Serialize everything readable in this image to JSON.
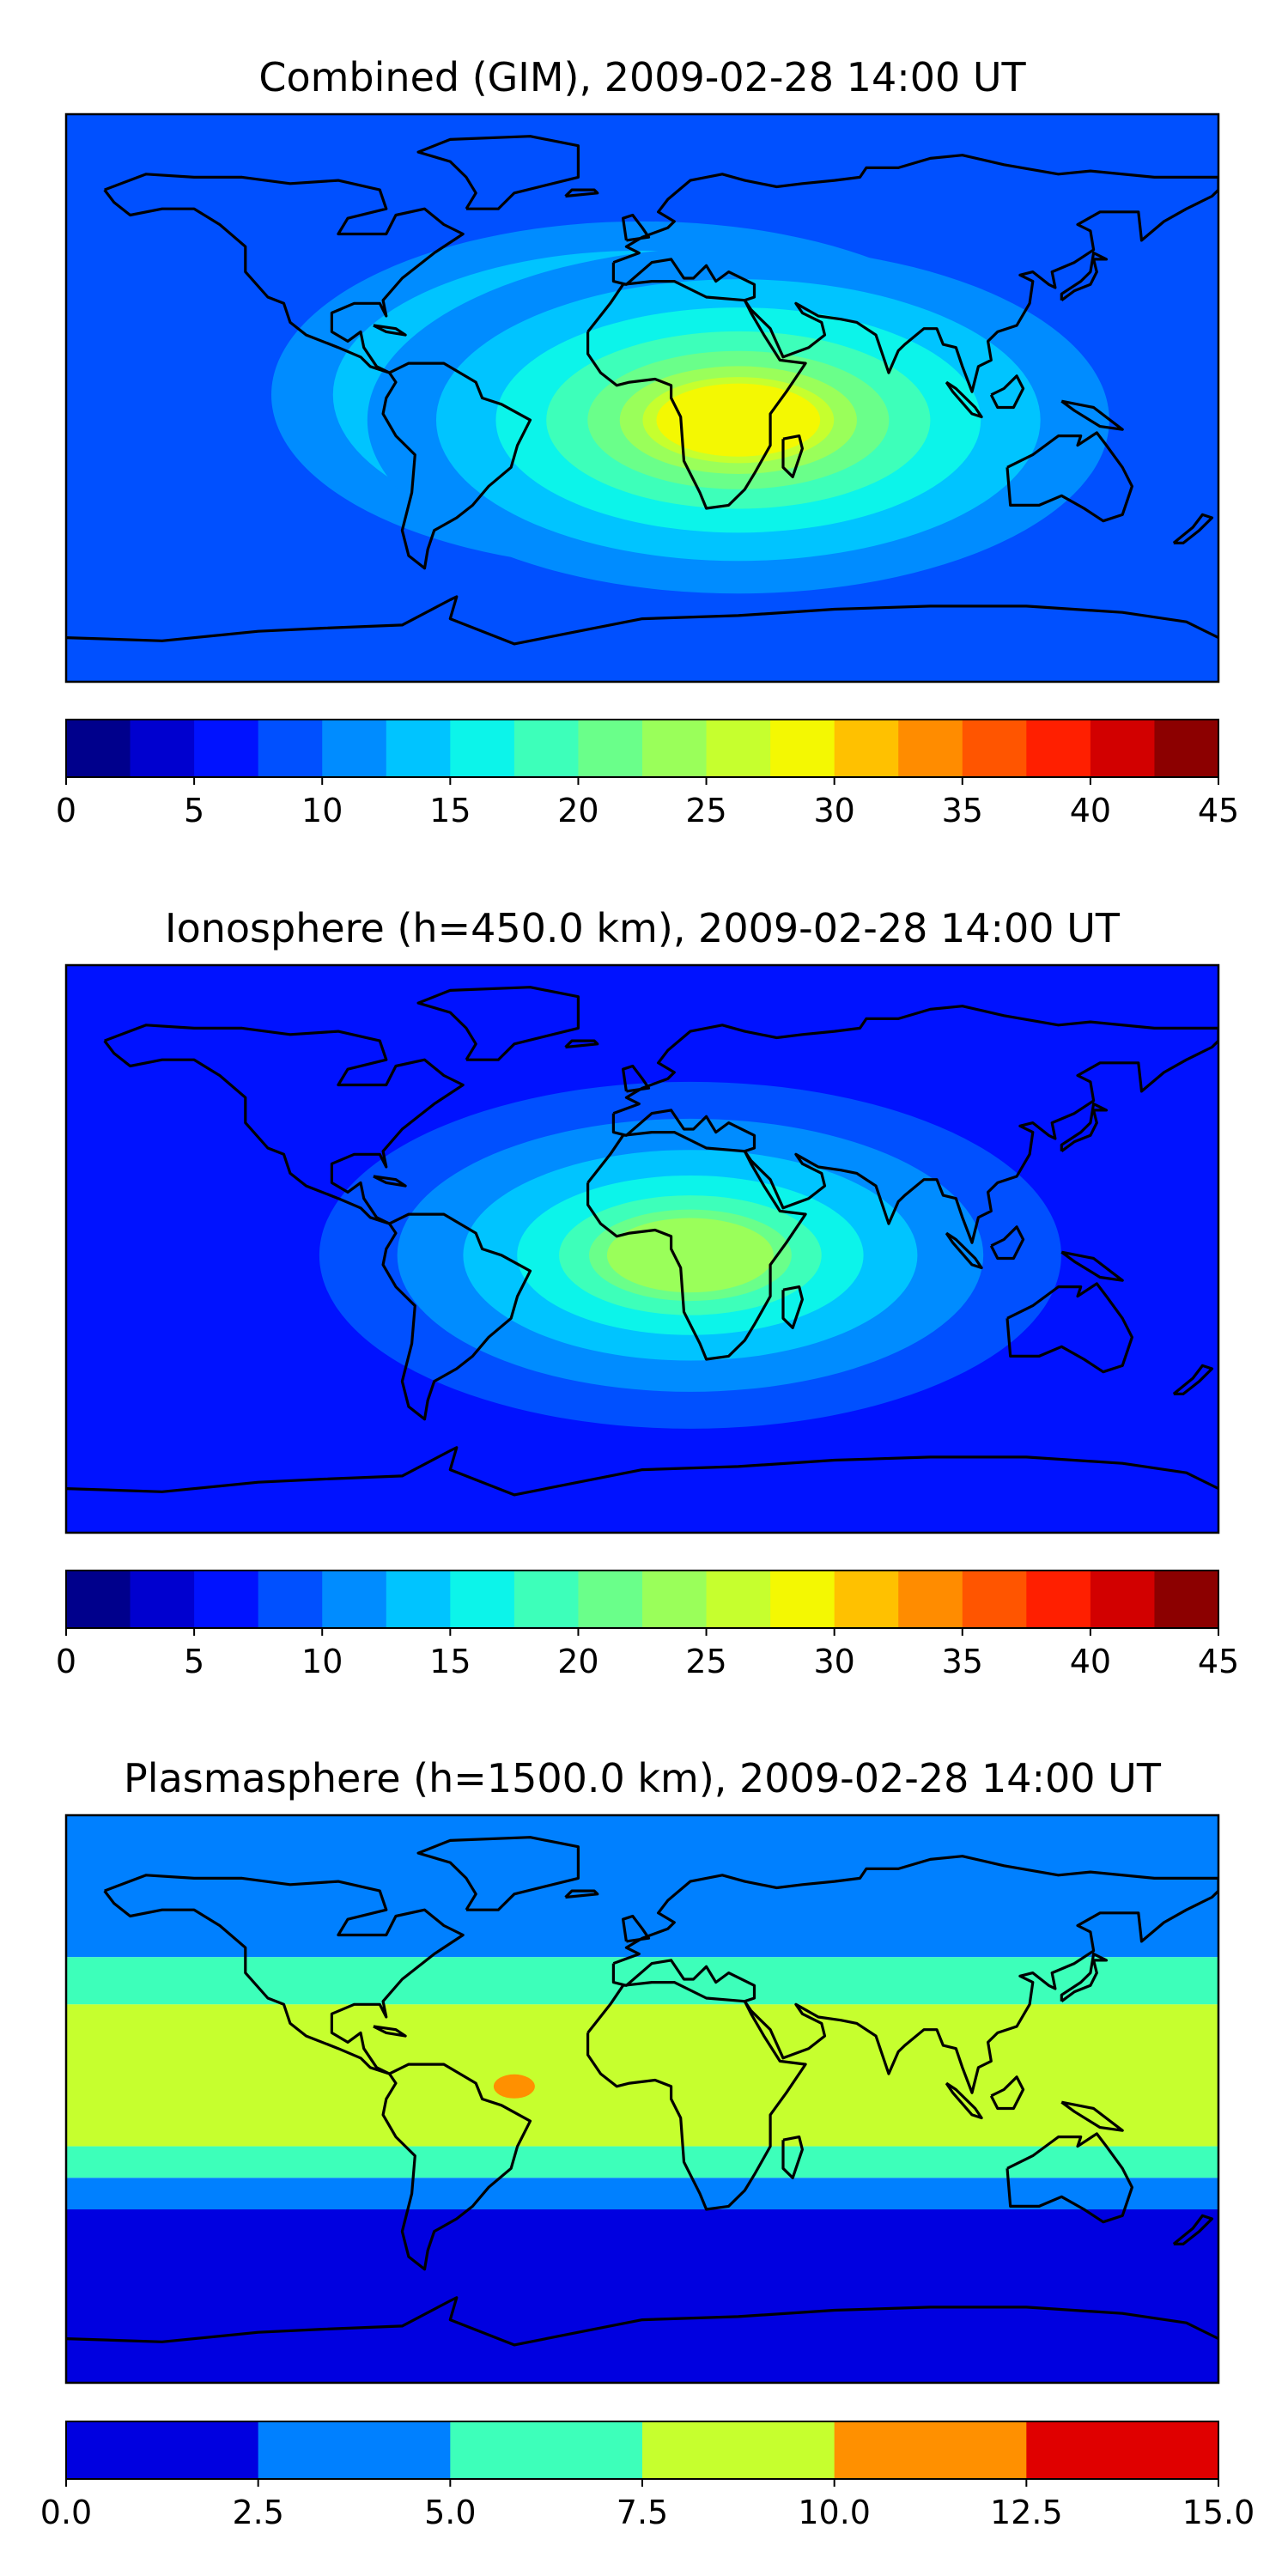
{
  "chart_data": [
    {
      "type": "heatmap",
      "title": "Combined (GIM), 2009-02-28 14:00 UT",
      "xlabel": "",
      "ylabel": "",
      "grid": false,
      "colorbar": {
        "orientation": "horizontal",
        "placement": "bottom",
        "range": [
          0,
          45
        ],
        "levels": [
          0,
          2.5,
          5,
          7.5,
          10,
          12.5,
          15,
          17.5,
          20,
          22.5,
          25,
          27.5,
          30,
          32.5,
          35,
          37.5,
          40,
          42.5,
          45
        ],
        "tick_labels": [
          "0",
          "5",
          "10",
          "15",
          "20",
          "25",
          "30",
          "35",
          "40",
          "45"
        ],
        "colors": [
          "#00008c",
          "#0000cf",
          "#0012ff",
          "#0050ff",
          "#008cff",
          "#00c4ff",
          "#0cf4ea",
          "#3dffba",
          "#6aff8a",
          "#9aff5a",
          "#c6ff2e",
          "#f4f802",
          "#ffc100",
          "#ff8c00",
          "#ff5500",
          "#ff1f00",
          "#d20000",
          "#8c0000"
        ]
      },
      "field": {
        "background_level": 7.5,
        "maxima": [
          {
            "lon": 0,
            "lat": 1,
            "peak": 30
          },
          {
            "lon": 30,
            "lat": -7,
            "peak": 27.5
          }
        ]
      }
    },
    {
      "type": "heatmap",
      "title": "Ionosphere  (h=450.0 km), 2009-02-28 14:00 UT",
      "xlabel": "",
      "ylabel": "",
      "grid": false,
      "colorbar": {
        "orientation": "horizontal",
        "placement": "bottom",
        "range": [
          0,
          45
        ],
        "levels": [
          0,
          2.5,
          5,
          7.5,
          10,
          12.5,
          15,
          17.5,
          20,
          22.5,
          25,
          27.5,
          30,
          32.5,
          35,
          37.5,
          40,
          42.5,
          45
        ],
        "tick_labels": [
          "0",
          "5",
          "10",
          "15",
          "20",
          "25",
          "30",
          "35",
          "40",
          "45"
        ],
        "colors": [
          "#00008c",
          "#0000cf",
          "#0012ff",
          "#0050ff",
          "#008cff",
          "#00c4ff",
          "#0cf4ea",
          "#3dffba",
          "#6aff8a",
          "#9aff5a",
          "#c6ff2e",
          "#f4f802",
          "#ffc100",
          "#ff8c00",
          "#ff5500",
          "#ff1f00",
          "#d20000",
          "#8c0000"
        ]
      },
      "field": {
        "background_level": 5,
        "maxima": [
          {
            "lon": 15,
            "lat": -2,
            "peak": 22.5
          }
        ]
      }
    },
    {
      "type": "heatmap",
      "title": "Plasmasphere (h=1500.0 km), 2009-02-28 14:00 UT",
      "xlabel": "",
      "ylabel": "",
      "grid": false,
      "colorbar": {
        "orientation": "horizontal",
        "placement": "bottom",
        "range": [
          0,
          15
        ],
        "levels": [
          0,
          2.5,
          5,
          7.5,
          10,
          12.5,
          15
        ],
        "tick_labels": [
          "0.0",
          "2.5",
          "5.0",
          "7.5",
          "10.0",
          "12.5",
          "15.0"
        ],
        "colors": [
          "#0000e0",
          "#0080ff",
          "#3dffba",
          "#c6ff2e",
          "#ff9000",
          "#e00000"
        ]
      },
      "field": {
        "bands_by_lat": [
          {
            "lat": [
              45,
              90
            ],
            "level": 2.5
          },
          {
            "lat": [
              30,
              45
            ],
            "level": 5
          },
          {
            "lat": [
              -15,
              30
            ],
            "level": 7.5
          },
          {
            "lat": [
              -25,
              -15
            ],
            "level": 5
          },
          {
            "lat": [
              -35,
              -25
            ],
            "level": 2.5
          },
          {
            "lat": [
              -90,
              -35
            ],
            "level": 0
          }
        ],
        "maxima": [
          {
            "lon": -40,
            "lat": 4,
            "peak": 10
          }
        ]
      }
    }
  ]
}
